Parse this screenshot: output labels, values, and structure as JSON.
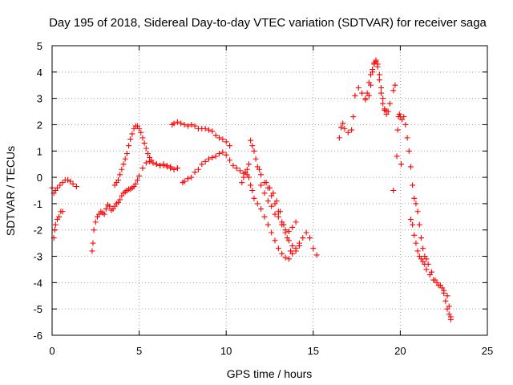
{
  "chart_data": {
    "type": "scatter",
    "title": "Day 195 of 2018, Sidereal Day-to-day VTEC variation (SDTVAR) for receiver saga",
    "xlabel": "GPS time / hours",
    "ylabel": "SDTVAR / TECUs",
    "xlim": [
      0,
      25
    ],
    "ylim": [
      -6,
      5
    ],
    "x_ticks": [
      "0",
      "5",
      "10",
      "15",
      "20",
      "25"
    ],
    "y_ticks": [
      "-6",
      "-5",
      "-4",
      "-3",
      "-2",
      "-1",
      "0",
      "1",
      "2",
      "3",
      "4",
      "5"
    ],
    "grid": true,
    "marker": "plus",
    "color": "#ff0000",
    "series": [
      {
        "x": [
          0.0,
          0.1,
          0.2,
          0.3,
          0.45,
          0.6,
          0.75,
          0.9,
          1.05,
          1.2,
          1.4
        ],
        "y": [
          -0.4,
          -0.6,
          -0.5,
          -0.4,
          -0.3,
          -0.2,
          -0.1,
          -0.1,
          -0.15,
          -0.25,
          -0.35
        ]
      },
      {
        "x": [
          0.1,
          0.15,
          0.2,
          0.3,
          0.4,
          0.5,
          0.6
        ],
        "y": [
          -2.3,
          -2.0,
          -1.8,
          -1.6,
          -1.5,
          -1.3,
          -1.3
        ]
      },
      {
        "x": [
          2.3,
          2.35,
          2.4,
          2.5,
          2.6,
          2.7,
          2.8,
          2.9,
          3.0,
          3.1,
          3.2,
          3.3,
          3.4,
          3.5,
          3.6,
          3.7,
          3.8,
          3.9,
          4.0,
          4.1,
          4.2,
          4.3,
          4.4,
          4.5,
          4.6,
          4.7,
          4.8,
          4.9,
          5.0,
          5.2,
          5.4,
          5.6,
          5.8,
          6.0,
          6.2,
          6.4,
          6.6,
          6.8,
          7.0,
          7.2
        ],
        "y": [
          -2.8,
          -2.5,
          -2.0,
          -1.7,
          -1.5,
          -1.4,
          -1.3,
          -1.35,
          -1.4,
          -1.2,
          -1.05,
          -1.1,
          -1.25,
          -1.2,
          -1.1,
          -1.0,
          -0.95,
          -0.85,
          -0.7,
          -0.6,
          -0.55,
          -0.5,
          -0.45,
          -0.45,
          -0.4,
          -0.35,
          -0.25,
          -0.1,
          0.05,
          0.35,
          0.55,
          0.6,
          0.55,
          0.5,
          0.45,
          0.5,
          0.45,
          0.4,
          0.3,
          0.35
        ]
      },
      {
        "x": [
          3.6,
          3.7,
          3.8,
          3.9,
          4.0,
          4.1,
          4.2,
          4.3,
          4.4,
          4.5,
          4.6,
          4.7,
          4.8,
          4.9,
          5.0,
          5.1,
          5.2,
          5.3,
          5.4,
          5.5,
          5.6,
          5.7,
          5.8,
          6.0,
          6.2,
          6.4,
          6.6,
          6.8,
          7.0,
          7.2
        ],
        "y": [
          -0.3,
          -0.2,
          -0.1,
          0.1,
          0.3,
          0.5,
          0.7,
          0.9,
          1.2,
          1.45,
          1.65,
          1.85,
          1.95,
          1.95,
          1.85,
          1.7,
          1.5,
          1.3,
          1.1,
          0.9,
          0.75,
          0.65,
          0.55,
          0.5,
          0.45,
          0.45,
          0.4,
          0.35,
          0.3,
          0.35
        ]
      },
      {
        "x": [
          6.9,
          7.0,
          7.2,
          7.4,
          7.6,
          7.8,
          8.0,
          8.2,
          8.4,
          8.6,
          8.8,
          9.0,
          9.2,
          9.4,
          9.6,
          9.8,
          10.0,
          10.2
        ],
        "y": [
          2.0,
          2.05,
          2.1,
          2.05,
          2.0,
          1.95,
          2.0,
          1.95,
          1.85,
          1.85,
          1.85,
          1.8,
          1.75,
          1.6,
          1.5,
          1.45,
          1.35,
          1.2
        ]
      },
      {
        "x": [
          7.5,
          7.6,
          7.8,
          8.0,
          8.2,
          8.4,
          8.6,
          8.8,
          9.0,
          9.2,
          9.4,
          9.6,
          9.8,
          10.0,
          10.2,
          10.4,
          10.6,
          10.8,
          11.0,
          11.2
        ],
        "y": [
          -0.2,
          -0.15,
          -0.05,
          0.0,
          0.2,
          0.3,
          0.5,
          0.6,
          0.7,
          0.75,
          0.8,
          0.9,
          0.95,
          0.85,
          0.65,
          0.45,
          0.35,
          0.25,
          0.15,
          0.1
        ]
      },
      {
        "x": [
          10.9,
          11.0,
          11.1,
          11.2,
          11.3,
          11.4,
          11.5,
          11.6,
          11.7,
          11.8,
          11.9,
          12.0,
          12.2,
          12.4,
          12.6,
          12.8,
          13.0,
          13.2,
          13.4,
          13.6,
          13.8,
          14.0
        ],
        "y": [
          -0.2,
          0.0,
          0.2,
          0.3,
          0.5,
          1.4,
          1.2,
          1.0,
          0.7,
          0.4,
          0.3,
          0.1,
          -0.2,
          -0.4,
          -0.7,
          -1.0,
          -1.3,
          -1.7,
          -2.1,
          -2.4,
          -2.6,
          -2.8
        ]
      },
      {
        "x": [
          11.3,
          11.4,
          11.5,
          11.6,
          11.8,
          12.0,
          12.2,
          12.4,
          12.6,
          12.8,
          13.0,
          13.2,
          13.4,
          13.6,
          13.8,
          14.0,
          14.2
        ],
        "y": [
          0.0,
          -0.3,
          -0.5,
          -0.8,
          -1.0,
          -1.2,
          -1.5,
          -1.8,
          -2.1,
          -2.4,
          -2.7,
          -2.9,
          -3.05,
          -3.1,
          -2.9,
          -2.7,
          -2.6
        ]
      },
      {
        "x": [
          12.0,
          12.2,
          12.4,
          12.6,
          12.8,
          13.0,
          13.2,
          13.4,
          13.6,
          13.8,
          14.0,
          14.2,
          14.4,
          14.6,
          14.8,
          15.0,
          15.2
        ],
        "y": [
          -0.3,
          -0.6,
          -0.9,
          -1.1,
          -1.4,
          -1.5,
          -1.8,
          -2.0,
          -2.05,
          -1.9,
          -1.7,
          -2.5,
          -2.3,
          -2.1,
          -2.3,
          -2.7,
          -2.95
        ]
      },
      {
        "x": [
          12.3,
          12.5,
          12.7,
          12.9,
          13.1,
          13.3,
          13.5,
          13.7
        ],
        "y": [
          -0.2,
          -0.4,
          -0.6,
          -0.9,
          -1.3,
          -1.8,
          -2.3,
          -2.8
        ]
      },
      {
        "x": [
          16.5,
          16.6,
          16.7,
          16.8,
          17.0,
          17.2,
          17.3,
          17.4,
          17.6,
          17.8,
          18.0,
          18.2,
          18.3,
          18.4,
          18.5,
          18.6,
          18.7,
          18.8,
          18.9,
          19.0,
          19.1,
          19.2,
          19.4,
          19.6,
          19.7
        ],
        "y": [
          1.5,
          1.9,
          2.05,
          1.85,
          1.7,
          1.8,
          2.3,
          3.1,
          3.4,
          3.2,
          2.95,
          3.1,
          3.5,
          4.0,
          4.35,
          4.4,
          4.2,
          3.7,
          3.2,
          2.8,
          2.55,
          2.5,
          2.8,
          3.3,
          3.5
        ]
      },
      {
        "x": [
          18.0,
          18.1,
          18.2,
          18.3,
          18.4,
          18.5,
          18.6,
          18.7,
          18.8,
          18.9,
          19.0,
          19.1,
          19.2,
          19.3
        ],
        "y": [
          3.0,
          3.2,
          3.6,
          3.9,
          4.1,
          4.3,
          4.45,
          4.3,
          3.9,
          3.4,
          3.0,
          2.6,
          2.4,
          2.5
        ]
      },
      {
        "x": [
          19.6
        ],
        "y": [
          -0.5
        ]
      },
      {
        "x": [
          19.8,
          19.85,
          19.9,
          19.95,
          20.0,
          20.05,
          20.1,
          20.2,
          20.3,
          20.4,
          20.5,
          20.6,
          20.7,
          20.8,
          20.9,
          21.0,
          21.1,
          21.2,
          21.3,
          21.4,
          21.5,
          21.6,
          21.8,
          22.0,
          22.2,
          22.4,
          22.5,
          22.6,
          22.7,
          22.8,
          22.9
        ],
        "y": [
          0.8,
          1.8,
          2.3,
          2.4,
          2.3,
          0.5,
          2.2,
          2.3,
          2.0,
          1.5,
          1.0,
          0.4,
          -0.3,
          -0.8,
          -1.0,
          -1.3,
          -1.8,
          -2.3,
          -2.7,
          -3.0,
          -3.1,
          -3.3,
          -3.6,
          -3.9,
          -4.1,
          -4.2,
          -4.4,
          -4.7,
          -5.0,
          -5.2,
          -5.3
        ]
      },
      {
        "x": [
          20.6,
          20.7,
          20.8,
          20.9,
          21.0,
          21.1,
          21.2,
          21.3,
          21.4,
          21.5,
          21.7,
          21.9,
          22.1,
          22.3,
          22.5,
          22.7,
          22.8,
          22.9
        ],
        "y": [
          -1.6,
          -1.8,
          -2.2,
          -2.5,
          -2.8,
          -3.0,
          -3.1,
          -3.2,
          -3.3,
          -3.5,
          -3.7,
          -3.9,
          -4.0,
          -4.1,
          -4.3,
          -4.5,
          -4.9,
          -5.4
        ]
      }
    ]
  }
}
